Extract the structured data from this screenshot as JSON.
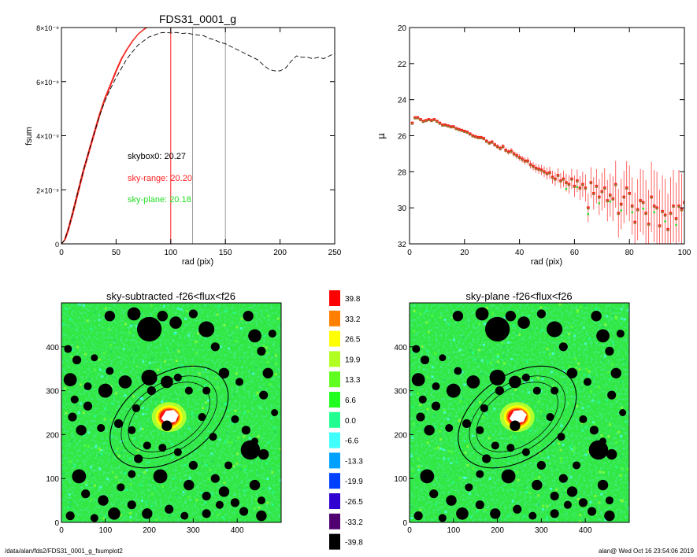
{
  "footer": {
    "left": "/data/alan/fds2/FDS31_0001_g_fsumplot2",
    "right": "alan@  Wed Oct 16 23:54:06 2019"
  },
  "colors": {
    "skybox": "#000000",
    "sky_range": "#ff2020",
    "sky_plane": "#22dd22",
    "curve_olive": "#8a7a2a"
  },
  "chart_data": [
    {
      "type": "line",
      "title": "FDS31_0001_g",
      "xlabel": "rad (pix)",
      "ylabel": "fsum",
      "xlim": [
        0,
        250
      ],
      "ylim": [
        0,
        8e-09
      ],
      "x_ticks": [
        "0",
        "50",
        "100",
        "150",
        "200",
        "250"
      ],
      "y_ticks": [
        "0",
        "2×10⁻⁹",
        "4×10⁻⁹",
        "6×10⁻⁹",
        "8×10⁻⁹"
      ],
      "annotations": [
        {
          "text": "skybox0: 20.27",
          "color": "#000000"
        },
        {
          "text": "sky-range: 20.20",
          "color": "#ff2020"
        },
        {
          "text": "sky-plane: 20.18",
          "color": "#22dd22"
        }
      ],
      "vlines": [
        {
          "x": 100,
          "color": "#ff2020"
        },
        {
          "x": 120,
          "color": "#999999"
        },
        {
          "x": 150,
          "color": "#999999"
        }
      ],
      "series": [
        {
          "style": "solid-red",
          "x": [
            0,
            3,
            6,
            10,
            15,
            20,
            25,
            30,
            35,
            40,
            45,
            50,
            55,
            60,
            65,
            70,
            75,
            78
          ],
          "y": [
            0,
            1.5e-10,
            5e-10,
            1.1e-09,
            1.9e-09,
            2.7e-09,
            3.4e-09,
            4.1e-09,
            4.8e-09,
            5.4e-09,
            5.9e-09,
            6.4e-09,
            6.85e-09,
            7.2e-09,
            7.5e-09,
            7.75e-09,
            7.92e-09,
            8e-09
          ]
        },
        {
          "style": "dashed-black",
          "x": [
            0,
            3,
            6,
            10,
            15,
            20,
            25,
            30,
            35,
            40,
            45,
            50,
            55,
            60,
            65,
            70,
            75,
            80,
            85,
            90,
            95,
            100,
            105,
            110,
            115,
            120,
            125,
            130,
            135,
            140,
            145,
            150,
            155,
            160,
            165,
            170,
            175,
            180,
            185,
            190,
            195,
            200,
            205,
            210,
            215,
            220,
            225,
            230,
            235,
            240,
            245,
            250
          ],
          "y": [
            0,
            1.5e-10,
            5e-10,
            1.1e-09,
            1.9e-09,
            2.7e-09,
            3.4e-09,
            4.1e-09,
            4.75e-09,
            5.3e-09,
            5.75e-09,
            6.15e-09,
            6.5e-09,
            6.85e-09,
            7.1e-09,
            7.35e-09,
            7.5e-09,
            7.65e-09,
            7.72e-09,
            7.8e-09,
            7.82e-09,
            7.8e-09,
            7.82e-09,
            7.78e-09,
            7.8e-09,
            7.75e-09,
            7.72e-09,
            7.7e-09,
            7.6e-09,
            7.55e-09,
            7.45e-09,
            7.4e-09,
            7.3e-09,
            7.2e-09,
            7.1e-09,
            7e-09,
            6.9e-09,
            6.8e-09,
            6.6e-09,
            6.45e-09,
            6.4e-09,
            6.4e-09,
            6.5e-09,
            6.75e-09,
            6.95e-09,
            6.9e-09,
            6.9e-09,
            6.85e-09,
            6.9e-09,
            6.85e-09,
            6.95e-09,
            7.05e-09
          ]
        }
      ]
    },
    {
      "type": "scatter",
      "title": "",
      "xlabel": "rad (pix)",
      "ylabel": "μ",
      "xlim": [
        0,
        100
      ],
      "ylim": [
        32,
        20
      ],
      "x_ticks": [
        "0",
        "20",
        "40",
        "60",
        "80",
        "100"
      ],
      "y_ticks": [
        "20",
        "22",
        "24",
        "26",
        "28",
        "30",
        "32"
      ],
      "x": [
        1,
        2,
        3,
        4,
        5,
        6,
        7,
        8,
        9,
        10,
        11,
        12,
        13,
        14,
        15,
        16,
        17,
        18,
        19,
        20,
        21,
        22,
        23,
        24,
        25,
        26,
        27,
        28,
        29,
        30,
        31,
        32,
        33,
        34,
        35,
        36,
        37,
        38,
        39,
        40,
        41,
        42,
        43,
        44,
        45,
        46,
        47,
        48,
        49,
        50,
        51,
        52,
        53,
        54,
        55,
        56,
        57,
        58,
        59,
        60,
        61,
        62,
        63,
        64,
        65,
        66,
        67,
        68,
        69,
        70,
        71,
        72,
        73,
        74,
        75,
        76,
        77,
        78,
        79,
        80,
        81,
        82,
        83,
        84,
        85,
        86,
        87,
        88,
        89,
        90,
        91,
        92,
        93,
        94,
        95,
        96,
        97,
        98,
        99,
        100
      ],
      "y": [
        25.3,
        25.0,
        25.0,
        25.1,
        25.2,
        25.15,
        25.1,
        25.15,
        25.1,
        25.2,
        25.3,
        25.4,
        25.4,
        25.45,
        25.5,
        25.5,
        25.6,
        25.65,
        25.7,
        25.75,
        25.8,
        25.9,
        26.0,
        26.05,
        26.1,
        26.1,
        26.15,
        26.3,
        26.4,
        26.35,
        26.5,
        26.6,
        26.7,
        26.6,
        26.8,
        26.9,
        26.85,
        27.0,
        27.1,
        27.2,
        27.3,
        27.4,
        27.4,
        27.6,
        27.7,
        27.8,
        27.85,
        27.9,
        28.0,
        28.1,
        28.05,
        28.3,
        28.4,
        28.2,
        28.5,
        28.4,
        28.6,
        28.7,
        28.4,
        28.8,
        28.5,
        28.9,
        28.7,
        28.9,
        30.0,
        28.6,
        29.2,
        28.8,
        29.4,
        29.1,
        28.9,
        29.6,
        29.3,
        29.5,
        28.7,
        30.3,
        29.8,
        29.4,
        28.9,
        29.2,
        29.9,
        30.8,
        30.1,
        29.6,
        29.7,
        30.3,
        30.9,
        29.4,
        29.9,
        30.0,
        31.0,
        30.2,
        30.4,
        31.2,
        30.3,
        29.9,
        30.6,
        29.9,
        30.1,
        29.7
      ],
      "err": [
        0.05,
        0.05,
        0.05,
        0.05,
        0.05,
        0.05,
        0.05,
        0.05,
        0.05,
        0.05,
        0.05,
        0.05,
        0.06,
        0.06,
        0.06,
        0.06,
        0.07,
        0.07,
        0.07,
        0.08,
        0.08,
        0.08,
        0.09,
        0.09,
        0.1,
        0.1,
        0.1,
        0.11,
        0.11,
        0.12,
        0.12,
        0.13,
        0.13,
        0.14,
        0.14,
        0.15,
        0.16,
        0.16,
        0.17,
        0.18,
        0.19,
        0.2,
        0.2,
        0.22,
        0.23,
        0.25,
        0.26,
        0.28,
        0.3,
        0.32,
        0.34,
        0.36,
        0.38,
        0.4,
        0.43,
        0.46,
        0.49,
        0.52,
        0.55,
        0.59,
        0.63,
        0.67,
        0.71,
        0.75,
        0.8,
        0.85,
        0.9,
        0.95,
        1.0,
        1.05,
        1.1,
        1.15,
        1.2,
        1.25,
        1.3,
        1.35,
        1.4,
        1.45,
        1.5,
        1.55,
        1.6,
        1.65,
        1.7,
        1.75,
        1.8,
        1.85,
        1.9,
        1.95,
        2.0,
        2.0,
        2.0,
        2.0,
        2.0,
        2.0,
        2.0,
        2.0,
        2.0,
        2.0,
        2.0,
        2.0
      ]
    },
    {
      "type": "heatmap",
      "title": "sky-subtracted -f26<flux<f26",
      "xlim": [
        0,
        500
      ],
      "ylim": [
        0,
        500
      ],
      "x_ticks": [
        "0",
        "100",
        "200",
        "300",
        "400"
      ],
      "y_ticks": [
        "0",
        "100",
        "200",
        "300",
        "400"
      ],
      "center": [
        245,
        240
      ],
      "ellipses": [
        {
          "a": 150,
          "b": 95,
          "angle": 35
        },
        {
          "a": 122,
          "b": 76,
          "angle": 35
        },
        {
          "a": 104,
          "b": 64,
          "angle": 35
        }
      ],
      "masks": [
        [
          110,
          470,
          12
        ],
        [
          165,
          475,
          15
        ],
        [
          200,
          440,
          28
        ],
        [
          230,
          470,
          12
        ],
        [
          260,
          455,
          14
        ],
        [
          300,
          475,
          10
        ],
        [
          330,
          440,
          18
        ],
        [
          350,
          400,
          10
        ],
        [
          425,
          470,
          12
        ],
        [
          440,
          425,
          15
        ],
        [
          455,
          390,
          10
        ],
        [
          15,
          395,
          9
        ],
        [
          35,
          370,
          10
        ],
        [
          75,
          375,
          8
        ],
        [
          110,
          345,
          9
        ],
        [
          20,
          325,
          15
        ],
        [
          60,
          310,
          9
        ],
        [
          100,
          300,
          16
        ],
        [
          30,
          280,
          9
        ],
        [
          60,
          265,
          10
        ],
        [
          25,
          240,
          10
        ],
        [
          45,
          210,
          12
        ],
        [
          90,
          215,
          9
        ],
        [
          130,
          225,
          10
        ],
        [
          170,
          260,
          9
        ],
        [
          160,
          210,
          9
        ],
        [
          145,
          320,
          15
        ],
        [
          200,
          330,
          18
        ],
        [
          240,
          320,
          14
        ],
        [
          265,
          330,
          9
        ],
        [
          205,
          300,
          10
        ],
        [
          290,
          300,
          9
        ],
        [
          330,
          300,
          9
        ],
        [
          370,
          340,
          12
        ],
        [
          405,
          320,
          9
        ],
        [
          470,
          340,
          12
        ],
        [
          460,
          290,
          10
        ],
        [
          320,
          240,
          9
        ],
        [
          345,
          195,
          9
        ],
        [
          395,
          235,
          9
        ],
        [
          420,
          210,
          10
        ],
        [
          440,
          185,
          8
        ],
        [
          430,
          165,
          22
        ],
        [
          460,
          155,
          12
        ],
        [
          380,
          130,
          9
        ],
        [
          350,
          100,
          10
        ],
        [
          300,
          130,
          10
        ],
        [
          265,
          160,
          9
        ],
        [
          230,
          170,
          9
        ],
        [
          195,
          175,
          9
        ],
        [
          175,
          145,
          10
        ],
        [
          225,
          105,
          16
        ],
        [
          290,
          85,
          12
        ],
        [
          330,
          60,
          10
        ],
        [
          370,
          70,
          12
        ],
        [
          395,
          45,
          10
        ],
        [
          440,
          85,
          12
        ],
        [
          40,
          105,
          16
        ],
        [
          55,
          65,
          10
        ],
        [
          95,
          50,
          12
        ],
        [
          120,
          20,
          14
        ],
        [
          160,
          40,
          10
        ],
        [
          195,
          20,
          12
        ],
        [
          245,
          30,
          10
        ],
        [
          280,
          15,
          9
        ],
        [
          330,
          20,
          10
        ],
        [
          360,
          40,
          9
        ],
        [
          415,
          25,
          10
        ],
        [
          455,
          15,
          12
        ],
        [
          20,
          15,
          10
        ],
        [
          75,
          10,
          9
        ],
        [
          135,
          80,
          9
        ],
        [
          160,
          110,
          9
        ],
        [
          455,
          50,
          9
        ],
        [
          485,
          250,
          8
        ],
        [
          480,
          430,
          9
        ],
        [
          240,
          220,
          12
        ]
      ]
    },
    {
      "type": "heatmap",
      "title": "sky-plane -f26<flux<f26",
      "xlim": [
        0,
        500
      ],
      "ylim": [
        0,
        500
      ],
      "x_ticks": [
        "0",
        "100",
        "200",
        "300",
        "400"
      ],
      "y_ticks": [
        "0",
        "100",
        "200",
        "300",
        "400"
      ]
    }
  ],
  "colorbar": {
    "labels": [
      "39.8",
      "33.2",
      "26.5",
      "19.9",
      "13.3",
      "6.6",
      "0.0",
      "-6.6",
      "-13.3",
      "-19.9",
      "-26.5",
      "-33.2",
      "-39.8"
    ],
    "colors": [
      "#ff0000",
      "#ff8000",
      "#ffff00",
      "#b0ff20",
      "#60ff20",
      "#20ff20",
      "#20ff90",
      "#40ffff",
      "#00a0ff",
      "#0040ff",
      "#3000d0",
      "#500070",
      "#000000"
    ]
  }
}
